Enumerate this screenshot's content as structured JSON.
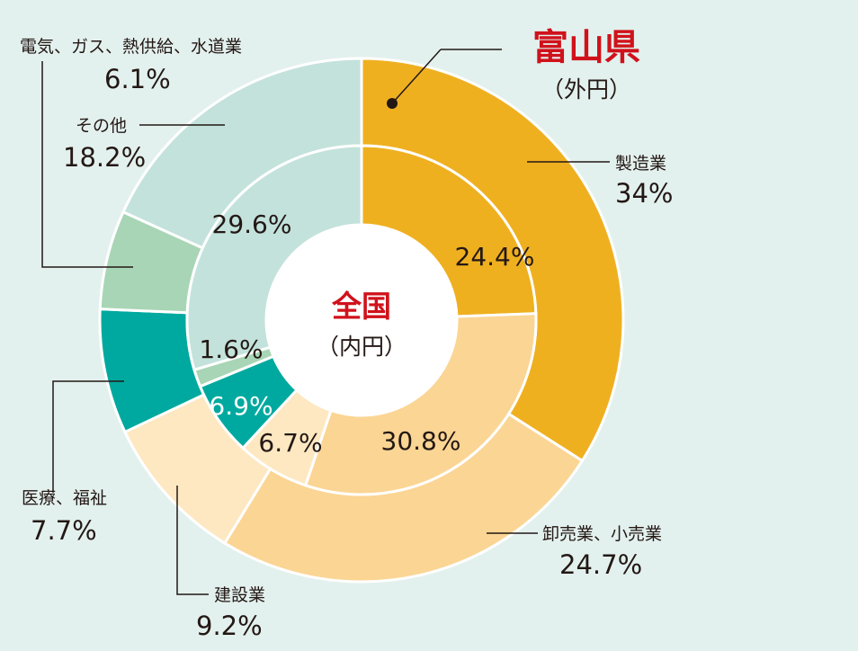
{
  "chart_data": {
    "type": "pie",
    "rings": [
      {
        "ring": "inner",
        "title": "全国",
        "subtitle": "（内円）",
        "slices": [
          {
            "label": "製造業",
            "value": 24.4,
            "display": "24.4%",
            "color": "#efb020"
          },
          {
            "label": "卸売業、小売業",
            "value": 30.8,
            "display": "30.8%",
            "color": "#fbd594"
          },
          {
            "label": "建設業",
            "value": 6.7,
            "display": "6.7%",
            "color": "#fde8c2"
          },
          {
            "label": "医療、福祉",
            "value": 6.9,
            "display": "6.9%",
            "color": "#00a99f"
          },
          {
            "label": "電気、ガス、熱供給、水道業",
            "value": 1.6,
            "display": "1.6%",
            "color": "#a8d5b5"
          },
          {
            "label": "その他",
            "value": 29.6,
            "display": "29.6%",
            "color": "#c3e2dc"
          }
        ]
      },
      {
        "ring": "outer",
        "title": "富山県",
        "subtitle": "（外円）",
        "slices": [
          {
            "label": "製造業",
            "value": 34,
            "display": "34%",
            "color": "#efb020"
          },
          {
            "label": "卸売業、小売業",
            "value": 24.7,
            "display": "24.7%",
            "color": "#fbd594"
          },
          {
            "label": "建設業",
            "value": 9.2,
            "display": "9.2%",
            "color": "#fde8c2"
          },
          {
            "label": "医療、福祉",
            "value": 7.7,
            "display": "7.7%",
            "color": "#00a99f"
          },
          {
            "label": "電気、ガス、熱供給、水道業",
            "value": 6.1,
            "display": "6.1%",
            "color": "#a8d5b5"
          },
          {
            "label": "その他",
            "value": 18.2,
            "display": "18.2%",
            "color": "#c3e2dc"
          }
        ]
      }
    ]
  },
  "colors": {
    "background": "#e3f1ee",
    "title_red": "#d0121b",
    "text": "#231815"
  }
}
